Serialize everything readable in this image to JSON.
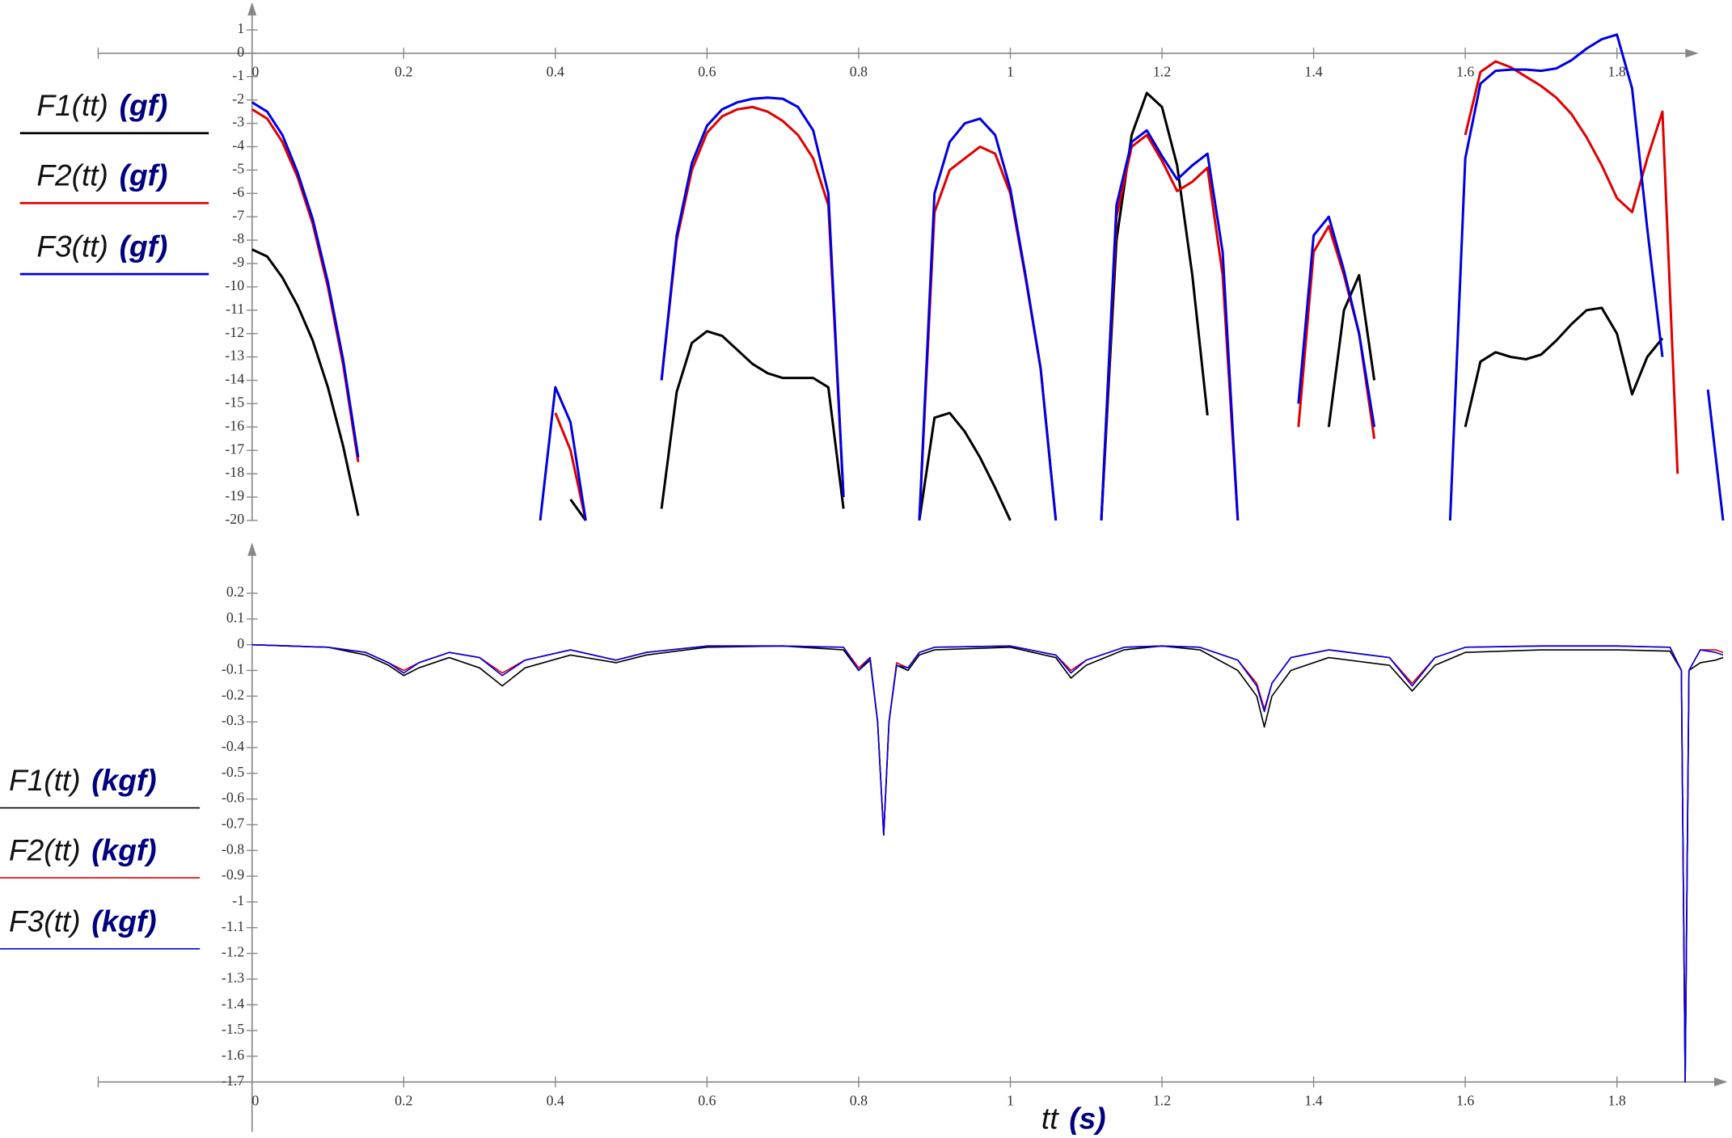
{
  "chart_data": [
    {
      "type": "line",
      "y_unit": "(gf)",
      "x": [
        0,
        0.02,
        0.04,
        0.06,
        0.08,
        0.1,
        0.12,
        0.14,
        0.16,
        0.18,
        0.2,
        0.22,
        0.24,
        0.26,
        0.28,
        0.3,
        0.32,
        0.34,
        0.36,
        0.38,
        0.4,
        0.42,
        0.44,
        0.46,
        0.48,
        0.5,
        0.52,
        0.54,
        0.56,
        0.58,
        0.6,
        0.62,
        0.64,
        0.66,
        0.68,
        0.7,
        0.72,
        0.74,
        0.76,
        0.78,
        0.8,
        0.82,
        0.84,
        0.86,
        0.88,
        0.9,
        0.92,
        0.94,
        0.96,
        0.98,
        1,
        1.02,
        1.04,
        1.06,
        1.08,
        1.1,
        1.12,
        1.14,
        1.16,
        1.18,
        1.2,
        1.22,
        1.24,
        1.26,
        1.28,
        1.3,
        1.32,
        1.34,
        1.36,
        1.38,
        1.4,
        1.42,
        1.44,
        1.46,
        1.48,
        1.5,
        1.52,
        1.54,
        1.56,
        1.58,
        1.6,
        1.62,
        1.64,
        1.66,
        1.68,
        1.7,
        1.72,
        1.74,
        1.76,
        1.78,
        1.8,
        1.82,
        1.84,
        1.86,
        1.88,
        1.9,
        1.92,
        1.94
      ],
      "series": [
        {
          "name": "F1(tt)",
          "color": "#000000",
          "values": [
            -8.4,
            -8.7,
            -9.6,
            -10.8,
            -12.3,
            -14.3,
            -16.8,
            -19.8,
            null,
            null,
            null,
            null,
            null,
            null,
            null,
            null,
            null,
            null,
            null,
            null,
            null,
            -19.1,
            -20,
            null,
            null,
            null,
            null,
            -19.5,
            -14.5,
            -12.4,
            -11.9,
            -12.1,
            -12.7,
            -13.3,
            -13.7,
            -13.9,
            -13.9,
            -13.9,
            -14.3,
            -19.5,
            null,
            null,
            null,
            null,
            -20,
            -15.6,
            -15.4,
            -16.2,
            -17.3,
            -18.6,
            -20,
            null,
            null,
            null,
            null,
            null,
            -20,
            -8,
            -3.5,
            -1.7,
            -2.3,
            -4.8,
            -9.5,
            -15.5,
            null,
            null,
            null,
            null,
            null,
            null,
            null,
            -16,
            -11,
            -9.5,
            -14,
            null,
            null,
            null,
            null,
            null,
            -16,
            -13.2,
            -12.8,
            -13.0,
            -13.1,
            -12.9,
            -12.3,
            -11.6,
            -11.0,
            -10.9,
            -12,
            -14.6,
            -13,
            -12.2,
            null,
            null,
            null,
            null
          ]
        },
        {
          "name": "F2(tt)",
          "color": "#e00000",
          "values": [
            -2.4,
            -2.8,
            -3.8,
            -5.3,
            -7.3,
            -10,
            -13.3,
            -17.5,
            null,
            null,
            null,
            null,
            null,
            null,
            null,
            null,
            null,
            null,
            null,
            null,
            -15.4,
            -17,
            -20,
            null,
            null,
            null,
            null,
            -14,
            -8,
            -5,
            -3.4,
            -2.7,
            -2.4,
            -2.3,
            -2.5,
            -2.9,
            -3.5,
            -4.5,
            -6.5,
            -19,
            null,
            null,
            null,
            null,
            -20,
            -6.8,
            -5,
            -4.5,
            -4.0,
            -4.3,
            -6,
            -9.6,
            -13.5,
            -20,
            null,
            null,
            -20,
            -7,
            -4,
            -3.5,
            -4.6,
            -5.9,
            -5.5,
            -4.9,
            -9.5,
            -20,
            null,
            null,
            null,
            -16,
            -8.5,
            -7.4,
            -9.5,
            -12,
            -16.5,
            null,
            null,
            null,
            null,
            null,
            -3.5,
            -0.8,
            -0.35,
            -0.6,
            -1.0,
            -1.4,
            -1.9,
            -2.6,
            -3.6,
            -4.8,
            -6.2,
            -6.8,
            -4.5,
            -2.5,
            -18,
            null,
            null,
            null
          ]
        },
        {
          "name": "F3(tt)",
          "color": "#0000e0",
          "values": [
            -2.1,
            -2.5,
            -3.5,
            -5.1,
            -7.1,
            -9.8,
            -13.1,
            -17.3,
            null,
            null,
            null,
            null,
            null,
            null,
            null,
            null,
            null,
            null,
            null,
            -20,
            -14.3,
            -15.8,
            -20,
            null,
            null,
            null,
            null,
            -14,
            -7.8,
            -4.7,
            -3.1,
            -2.4,
            -2.1,
            -1.95,
            -1.9,
            -1.95,
            -2.3,
            -3.3,
            -6,
            -19,
            null,
            null,
            null,
            null,
            -20,
            -6,
            -3.8,
            -3,
            -2.8,
            -3.5,
            -5.8,
            -9.5,
            -13.5,
            -20,
            null,
            null,
            -20,
            -6.5,
            -3.8,
            -3.3,
            -4.4,
            -5.4,
            -4.8,
            -4.3,
            -8.5,
            -20,
            null,
            null,
            null,
            -15,
            -7.8,
            -7.0,
            -9.3,
            -12,
            -16,
            null,
            null,
            null,
            null,
            -20,
            -4.5,
            -1.3,
            -0.75,
            -0.7,
            -0.7,
            -0.75,
            -0.65,
            -0.3,
            0.2,
            0.6,
            0.8,
            -1.5,
            -7.5,
            -13,
            null,
            null,
            -14.4,
            -20
          ]
        }
      ],
      "xlim": [
        -0.2,
        1.95
      ],
      "ylim": [
        -20,
        2
      ],
      "xticks": [
        0,
        0.2,
        0.4,
        0.6,
        0.8,
        1,
        1.2,
        1.4,
        1.6,
        1.8
      ],
      "yticks": [
        1,
        0,
        -1,
        -2,
        -3,
        -4,
        -5,
        -6,
        -7,
        -8,
        -9,
        -10,
        -11,
        -12,
        -13,
        -14,
        -15,
        -16,
        -17,
        -18,
        -19,
        -20
      ]
    },
    {
      "type": "line",
      "y_unit": "(kgf)",
      "x_label": "tt",
      "x_unit": "(s)",
      "x": [
        0,
        0.05,
        0.1,
        0.15,
        0.18,
        0.2,
        0.22,
        0.26,
        0.3,
        0.33,
        0.36,
        0.42,
        0.48,
        0.52,
        0.6,
        0.7,
        0.78,
        0.8,
        0.815,
        0.825,
        0.833,
        0.84,
        0.85,
        0.865,
        0.88,
        0.9,
        1.0,
        1.06,
        1.08,
        1.1,
        1.15,
        1.2,
        1.25,
        1.3,
        1.325,
        1.335,
        1.345,
        1.37,
        1.42,
        1.5,
        1.53,
        1.56,
        1.6,
        1.7,
        1.8,
        1.87,
        1.885,
        1.89,
        1.895,
        1.91,
        1.93,
        1.94
      ],
      "series": [
        {
          "name": "F1(tt)",
          "color": "#000000",
          "values": [
            0,
            -0.005,
            -0.01,
            -0.04,
            -0.08,
            -0.12,
            -0.09,
            -0.05,
            -0.09,
            -0.16,
            -0.09,
            -0.04,
            -0.07,
            -0.04,
            -0.01,
            -0.005,
            -0.02,
            -0.1,
            -0.06,
            -0.3,
            -0.74,
            -0.3,
            -0.08,
            -0.1,
            -0.04,
            -0.02,
            -0.01,
            -0.05,
            -0.13,
            -0.08,
            -0.02,
            -0.005,
            -0.02,
            -0.1,
            -0.2,
            -0.32,
            -0.2,
            -0.1,
            -0.05,
            -0.08,
            -0.18,
            -0.08,
            -0.03,
            -0.02,
            -0.02,
            -0.025,
            -0.1,
            -1.7,
            -0.1,
            -0.07,
            -0.06,
            -0.05
          ]
        },
        {
          "name": "F2(tt)",
          "color": "#e00000",
          "values": [
            0,
            -0.005,
            -0.01,
            -0.03,
            -0.07,
            -0.1,
            -0.07,
            -0.03,
            -0.05,
            -0.11,
            -0.06,
            -0.02,
            -0.06,
            -0.03,
            -0.005,
            -0.005,
            -0.01,
            -0.09,
            -0.05,
            -0.3,
            -0.74,
            -0.3,
            -0.07,
            -0.09,
            -0.03,
            -0.01,
            -0.005,
            -0.04,
            -0.1,
            -0.06,
            -0.01,
            -0.005,
            -0.01,
            -0.06,
            -0.15,
            -0.25,
            -0.15,
            -0.05,
            -0.02,
            -0.05,
            -0.15,
            -0.05,
            -0.01,
            -0.005,
            -0.005,
            -0.01,
            -0.1,
            -1.7,
            -0.1,
            -0.02,
            -0.02,
            -0.03
          ]
        },
        {
          "name": "F3(tt)",
          "color": "#0000e0",
          "values": [
            0,
            -0.005,
            -0.01,
            -0.03,
            -0.07,
            -0.11,
            -0.07,
            -0.03,
            -0.05,
            -0.12,
            -0.06,
            -0.02,
            -0.06,
            -0.03,
            -0.005,
            -0.005,
            -0.01,
            -0.1,
            -0.05,
            -0.3,
            -0.74,
            -0.3,
            -0.08,
            -0.09,
            -0.03,
            -0.01,
            -0.005,
            -0.04,
            -0.11,
            -0.06,
            -0.01,
            -0.005,
            -0.01,
            -0.06,
            -0.16,
            -0.26,
            -0.15,
            -0.05,
            -0.02,
            -0.05,
            -0.16,
            -0.05,
            -0.01,
            -0.005,
            -0.005,
            -0.01,
            -0.1,
            -1.7,
            -0.1,
            -0.02,
            -0.03,
            -0.04
          ]
        }
      ],
      "xlim": [
        -0.2,
        1.95
      ],
      "ylim": [
        -1.7,
        0.38
      ],
      "xticks": [
        0,
        0.2,
        0.4,
        0.6,
        0.8,
        1,
        1.2,
        1.4,
        1.6,
        1.8
      ],
      "yticks": [
        0.2,
        0.1,
        0,
        -0.1,
        -0.2,
        -0.3,
        -0.4,
        -0.5,
        -0.6,
        -0.7,
        -0.8,
        -0.9,
        -1,
        -1.1,
        -1.2,
        -1.3,
        -1.4,
        -1.5,
        -1.6,
        -1.7
      ]
    }
  ]
}
